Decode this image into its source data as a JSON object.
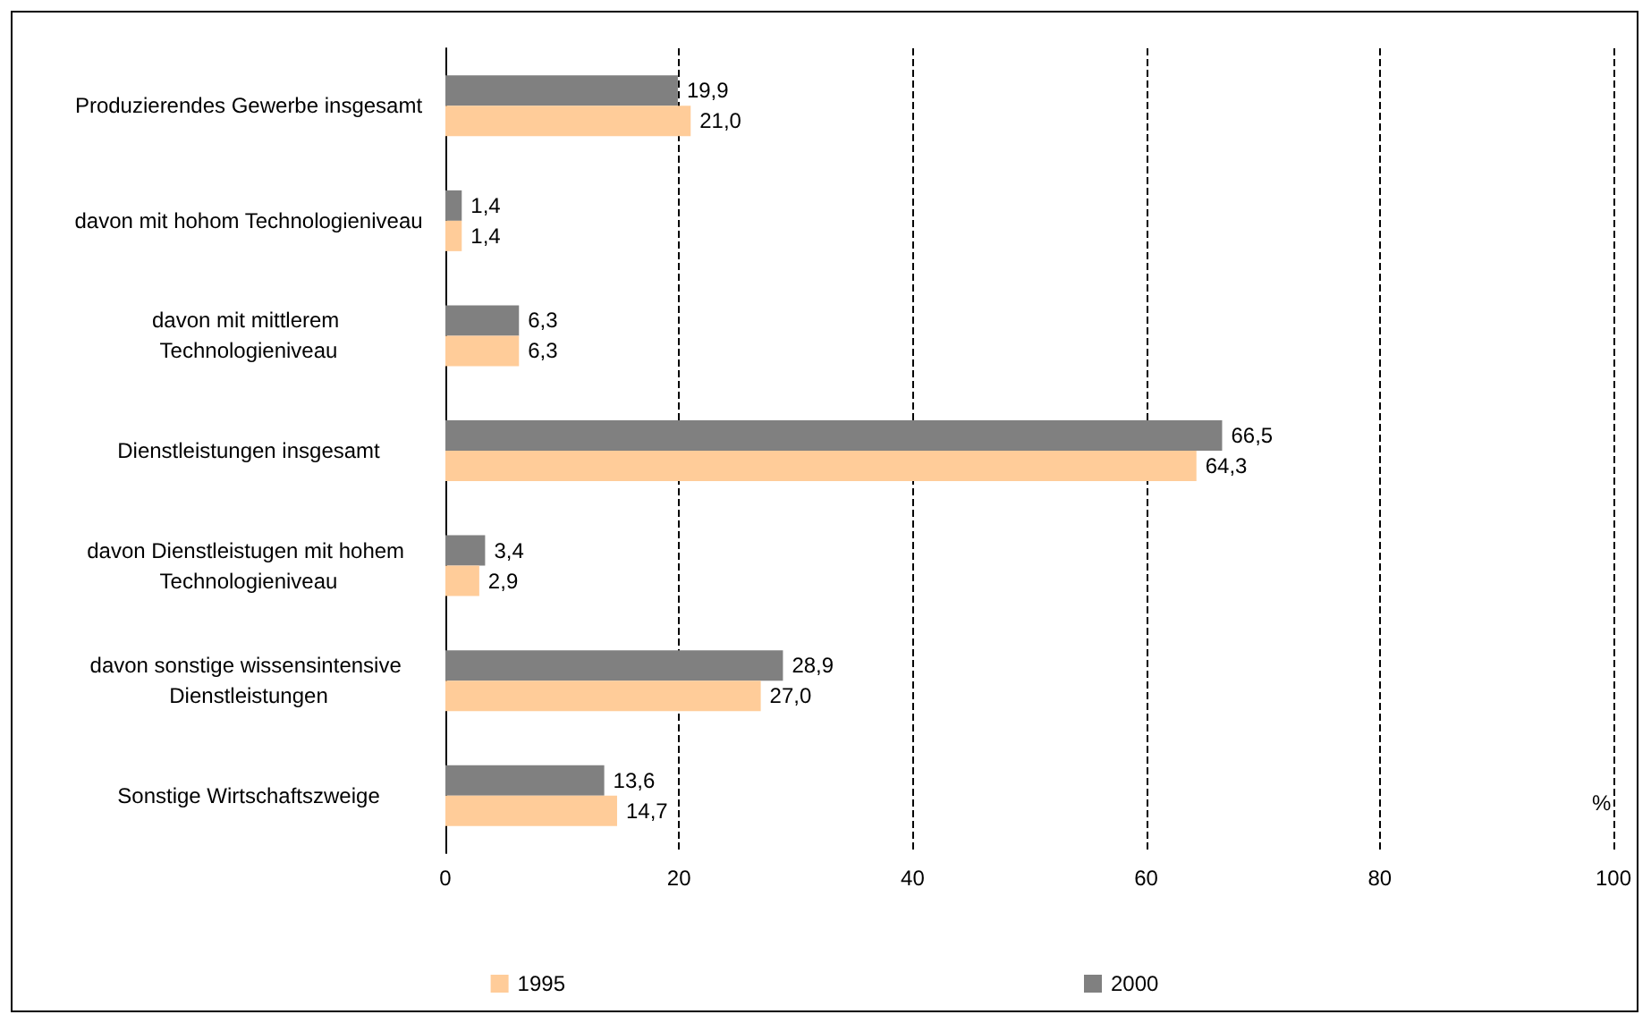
{
  "chart_data": {
    "type": "bar",
    "orientation": "horizontal",
    "xlabel": "%",
    "categories": [
      "Produzierendes Gewerbe insgesamt",
      "davon mit hohom Technologieniveau",
      "davon mit mittlerem Technologieniveau",
      "Dienstleistungen insgesamt",
      "davon Dienstleistugen mit hohem Technologieniveau",
      "davon sonstige wissensintensive Dienstleistungen",
      "Sonstige Wirtschaftszweige"
    ],
    "series": [
      {
        "name": "1995",
        "color": "#ffcc99",
        "values": [
          21.0,
          1.4,
          6.3,
          64.3,
          2.9,
          27.0,
          14.7
        ],
        "value_labels": [
          "21,0",
          "1,4",
          "6,3",
          "64,3",
          "2,9",
          "27,0",
          "14,7"
        ]
      },
      {
        "name": "2000",
        "color": "#808080",
        "values": [
          19.9,
          1.4,
          6.3,
          66.5,
          3.4,
          28.9,
          13.6
        ],
        "value_labels": [
          "19,9",
          "1,4",
          "6,3",
          "66,5",
          "3,4",
          "28,9",
          "13,6"
        ]
      }
    ],
    "xlim": [
      0,
      100
    ],
    "xticks": [
      0,
      20,
      40,
      60,
      80,
      100
    ],
    "grid": "x",
    "legend": "bottom"
  }
}
